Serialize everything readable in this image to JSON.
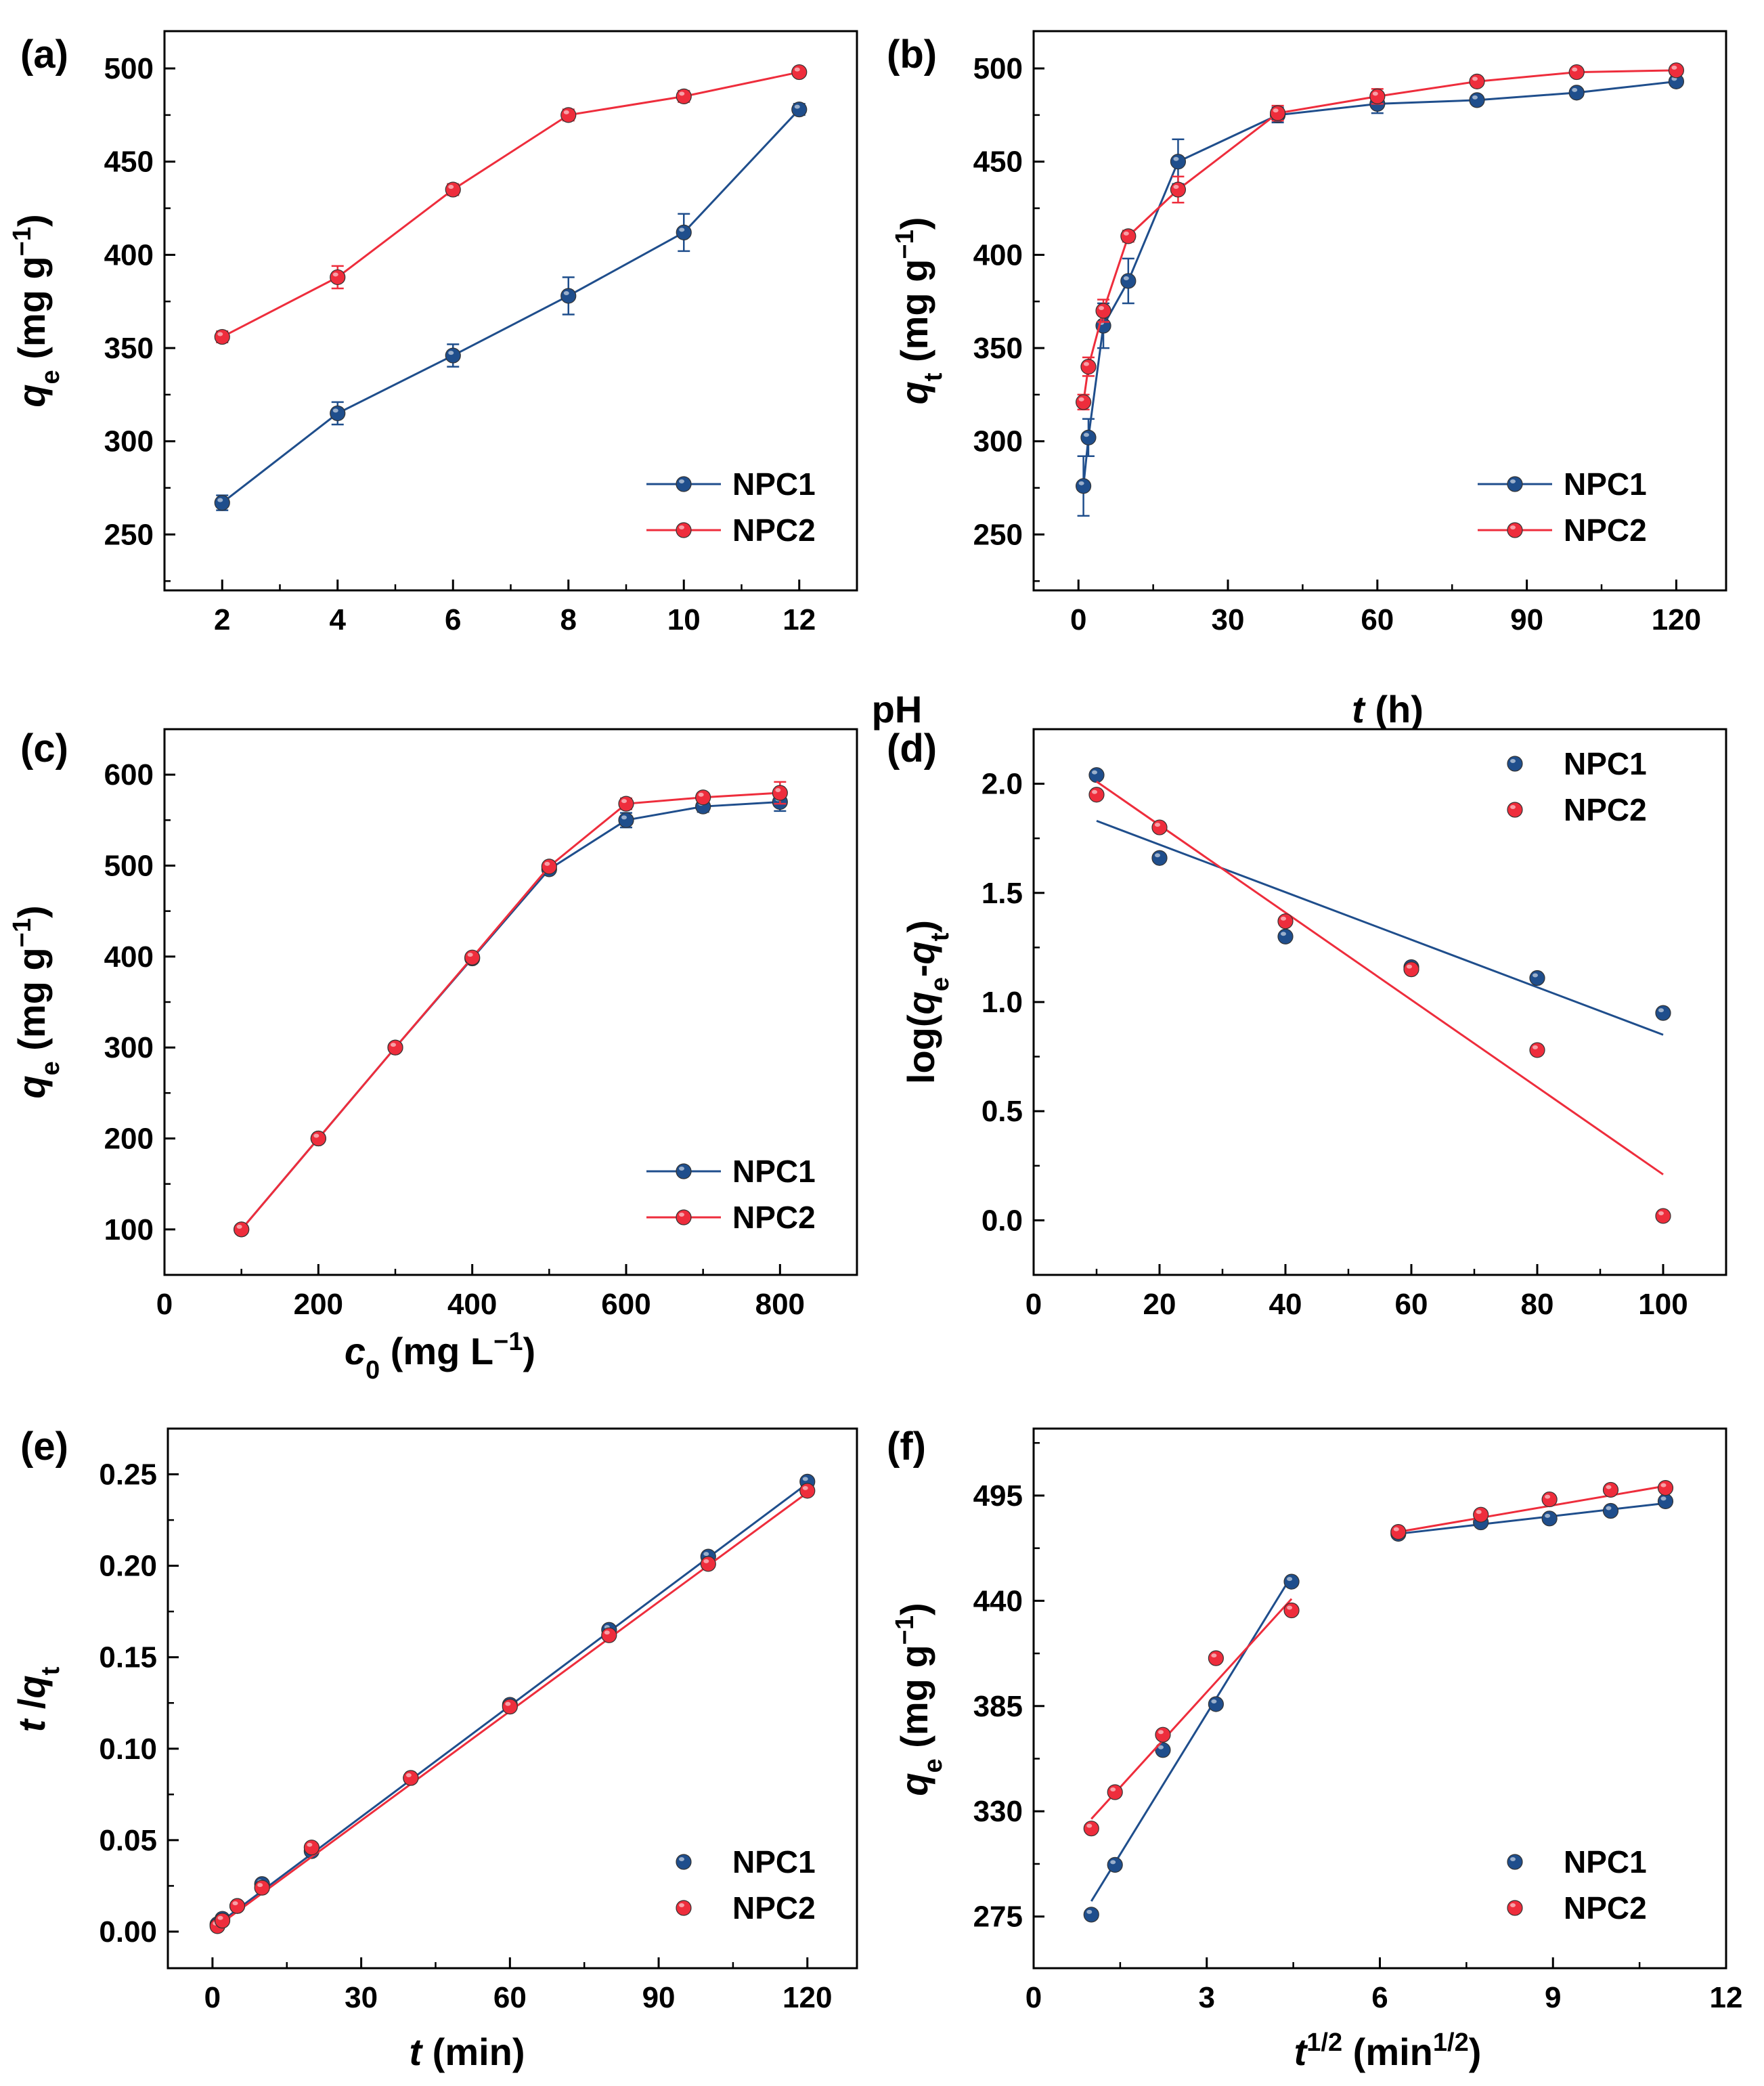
{
  "colors": {
    "NPC1": "#1f4e8c",
    "NPC2": "#ee2d3c"
  },
  "chart_data": [
    {
      "id": "a",
      "panel_label": "(a)",
      "type": "line",
      "xlabel": {
        "main": "pH",
        "unit": ""
      },
      "ylabel": {
        "main": "q",
        "sub": "e",
        "unit_pre": " (mg g",
        "unit_sup": "−1",
        "unit_post": ")"
      },
      "xlim": [
        1,
        13
      ],
      "ylim": [
        220,
        520
      ],
      "xticks": [
        2,
        4,
        6,
        8,
        10,
        12
      ],
      "yticks": [
        250,
        300,
        350,
        400,
        450,
        500
      ],
      "legend_position": "bottom-right",
      "series": [
        {
          "name": "NPC1",
          "x": [
            2,
            4,
            6,
            8,
            10,
            12
          ],
          "y": [
            267,
            315,
            346,
            378,
            412,
            478
          ],
          "err": [
            4,
            6,
            6,
            10,
            10,
            3
          ]
        },
        {
          "name": "NPC2",
          "x": [
            2,
            4,
            6,
            8,
            10,
            12
          ],
          "y": [
            356,
            388,
            435,
            475,
            485,
            498
          ],
          "err": [
            3,
            6,
            3,
            3,
            3,
            2
          ]
        }
      ]
    },
    {
      "id": "b",
      "panel_label": "(b)",
      "type": "line",
      "xlabel": {
        "main": "t",
        "italic": true,
        "unit": " (h)"
      },
      "ylabel": {
        "main": "q",
        "sub": "t",
        "unit_pre": " (mg g",
        "unit_sup": "−1",
        "unit_post": ")"
      },
      "xlim": [
        -9,
        130
      ],
      "ylim": [
        220,
        520
      ],
      "xticks": [
        0,
        30,
        60,
        90,
        120
      ],
      "yticks": [
        250,
        300,
        350,
        400,
        450,
        500
      ],
      "legend_position": "bottom-right",
      "series": [
        {
          "name": "NPC1",
          "x": [
            1,
            2,
            5,
            10,
            20,
            40,
            60,
            80,
            100,
            120
          ],
          "y": [
            276,
            302,
            362,
            386,
            450,
            475,
            481,
            483,
            487,
            493
          ],
          "err": [
            16,
            10,
            12,
            12,
            12,
            4,
            5,
            2,
            2,
            2
          ]
        },
        {
          "name": "NPC2",
          "x": [
            1,
            2,
            5,
            10,
            20,
            40,
            60,
            80,
            100,
            120
          ],
          "y": [
            321,
            340,
            370,
            410,
            435,
            476,
            485,
            493,
            498,
            499
          ],
          "err": [
            4,
            5,
            6,
            3,
            7,
            4,
            4,
            2,
            2,
            2
          ]
        }
      ]
    },
    {
      "id": "c",
      "panel_label": "(c)",
      "type": "line",
      "xlabel": {
        "main": "c",
        "sub": "0",
        "unit_pre": " (mg L",
        "unit_sup": "−1",
        "unit_post": ")"
      },
      "ylabel": {
        "main": "q",
        "sub": "e",
        "unit_pre": " (mg g",
        "unit_sup": "−1",
        "unit_post": ")"
      },
      "xlim": [
        0,
        900
      ],
      "ylim": [
        50,
        650
      ],
      "xticks": [
        0,
        200,
        400,
        600,
        800
      ],
      "yticks": [
        100,
        200,
        300,
        400,
        500,
        600
      ],
      "legend_position": "bottom-right",
      "series": [
        {
          "name": "NPC1",
          "x": [
            100,
            200,
            300,
            400,
            500,
            600,
            700,
            800
          ],
          "y": [
            100,
            200,
            300,
            398,
            496,
            550,
            565,
            570
          ],
          "err": [
            0,
            0,
            0,
            0,
            0,
            8,
            6,
            10
          ]
        },
        {
          "name": "NPC2",
          "x": [
            100,
            200,
            300,
            400,
            500,
            600,
            700,
            800
          ],
          "y": [
            100,
            200,
            300,
            399,
            499,
            568,
            575,
            580
          ],
          "err": [
            0,
            0,
            0,
            0,
            0,
            6,
            5,
            12
          ]
        }
      ]
    },
    {
      "id": "d",
      "panel_label": "(d)",
      "type": "scatter",
      "xlabel": {
        "main": "",
        "unit": ""
      },
      "ylabel": {
        "raw": [
          [
            "log(",
            "n"
          ],
          [
            "q",
            "i"
          ],
          [
            "e",
            "sub"
          ],
          [
            "-",
            "n"
          ],
          [
            "q",
            "i"
          ],
          [
            "t",
            "sub"
          ],
          [
            ")",
            "n"
          ]
        ]
      },
      "xlim": [
        0,
        110
      ],
      "ylim": [
        -0.25,
        2.25
      ],
      "xticks": [
        0,
        20,
        40,
        60,
        80,
        100
      ],
      "yticks": [
        0.0,
        0.5,
        1.0,
        1.5,
        2.0
      ],
      "ytick_labels": [
        "0.0",
        "0.5",
        "1.0",
        "1.5",
        "2.0"
      ],
      "legend_position": "top-right",
      "series": [
        {
          "name": "NPC1",
          "x": [
            10,
            20,
            40,
            60,
            80,
            100
          ],
          "y": [
            2.04,
            1.66,
            1.3,
            1.16,
            1.11,
            0.95
          ],
          "fit": {
            "x": [
              10,
              100
            ],
            "y": [
              1.83,
              0.85
            ]
          }
        },
        {
          "name": "NPC2",
          "x": [
            10,
            20,
            40,
            60,
            80,
            100
          ],
          "y": [
            1.95,
            1.8,
            1.37,
            1.15,
            0.78,
            0.02
          ],
          "fit": {
            "x": [
              10,
              100
            ],
            "y": [
              2.01,
              0.21
            ]
          }
        }
      ]
    },
    {
      "id": "e",
      "panel_label": "(e)",
      "type": "scatter",
      "xlabel": {
        "main": "t",
        "italic": true,
        "unit": " (min)"
      },
      "ylabel": {
        "raw": [
          [
            "t",
            "i"
          ],
          [
            " /",
            "n"
          ],
          [
            "q",
            "i"
          ],
          [
            "t",
            "sub"
          ]
        ]
      },
      "xlim": [
        -9,
        130
      ],
      "ylim": [
        -0.02,
        0.275
      ],
      "xticks": [
        0,
        30,
        60,
        90,
        120
      ],
      "yticks": [
        0.0,
        0.05,
        0.1,
        0.15,
        0.2,
        0.25
      ],
      "ytick_labels": [
        "0.00",
        "0.05",
        "0.10",
        "0.15",
        "0.20",
        "0.25"
      ],
      "legend_position": "bottom-right",
      "series": [
        {
          "name": "NPC1",
          "x": [
            1,
            2,
            5,
            10,
            20,
            40,
            60,
            80,
            100,
            120
          ],
          "y": [
            0.004,
            0.007,
            0.014,
            0.026,
            0.044,
            0.084,
            0.124,
            0.165,
            0.205,
            0.246
          ],
          "fit": {
            "x": [
              1,
              120
            ],
            "y": [
              0.004,
              0.245
            ]
          }
        },
        {
          "name": "NPC2",
          "x": [
            1,
            2,
            5,
            10,
            20,
            40,
            60,
            80,
            100,
            120
          ],
          "y": [
            0.003,
            0.006,
            0.014,
            0.024,
            0.046,
            0.084,
            0.123,
            0.162,
            0.201,
            0.241
          ],
          "fit": {
            "x": [
              1,
              120
            ],
            "y": [
              0.003,
              0.24
            ]
          }
        }
      ]
    },
    {
      "id": "f",
      "panel_label": "(f)",
      "type": "scatter",
      "xlabel": {
        "raw": [
          [
            "t",
            "i"
          ],
          [
            "1/2",
            "sup"
          ],
          [
            " (min",
            "n"
          ],
          [
            "1/2",
            "sup"
          ],
          [
            ")",
            "n"
          ]
        ]
      },
      "ylabel": {
        "main": "q",
        "sub": "e",
        "unit_pre": " (mg g",
        "unit_sup": "−1",
        "unit_post": ")"
      },
      "xlim": [
        0,
        12
      ],
      "ylim": [
        248,
        530
      ],
      "xticks": [
        0,
        3,
        6,
        9,
        12
      ],
      "yticks": [
        275,
        330,
        385,
        440,
        495
      ],
      "legend_position": "bottom-right",
      "series": [
        {
          "name": "NPC1",
          "x": [
            1.0,
            1.41,
            2.24,
            3.16,
            4.47,
            6.32,
            7.75,
            8.94,
            10.0,
            10.95
          ],
          "y": [
            276,
            302,
            362,
            386,
            450,
            475,
            481,
            483,
            487,
            492
          ],
          "fits": [
            {
              "x": [
                1.0,
                4.47
              ],
              "y": [
                283,
                453
              ]
            },
            {
              "x": [
                6.32,
                10.95
              ],
              "y": [
                475,
                491
              ]
            }
          ]
        },
        {
          "name": "NPC2",
          "x": [
            1.0,
            1.41,
            2.24,
            3.16,
            4.47,
            6.32,
            7.75,
            8.94,
            10.0,
            10.95
          ],
          "y": [
            321,
            340,
            370,
            410,
            435,
            476,
            485,
            493,
            498,
            499
          ],
          "fits": [
            {
              "x": [
                1.0,
                4.47
              ],
              "y": [
                326,
                441
              ]
            },
            {
              "x": [
                6.32,
                10.95
              ],
              "y": [
                476,
                500
              ]
            }
          ]
        }
      ]
    }
  ]
}
